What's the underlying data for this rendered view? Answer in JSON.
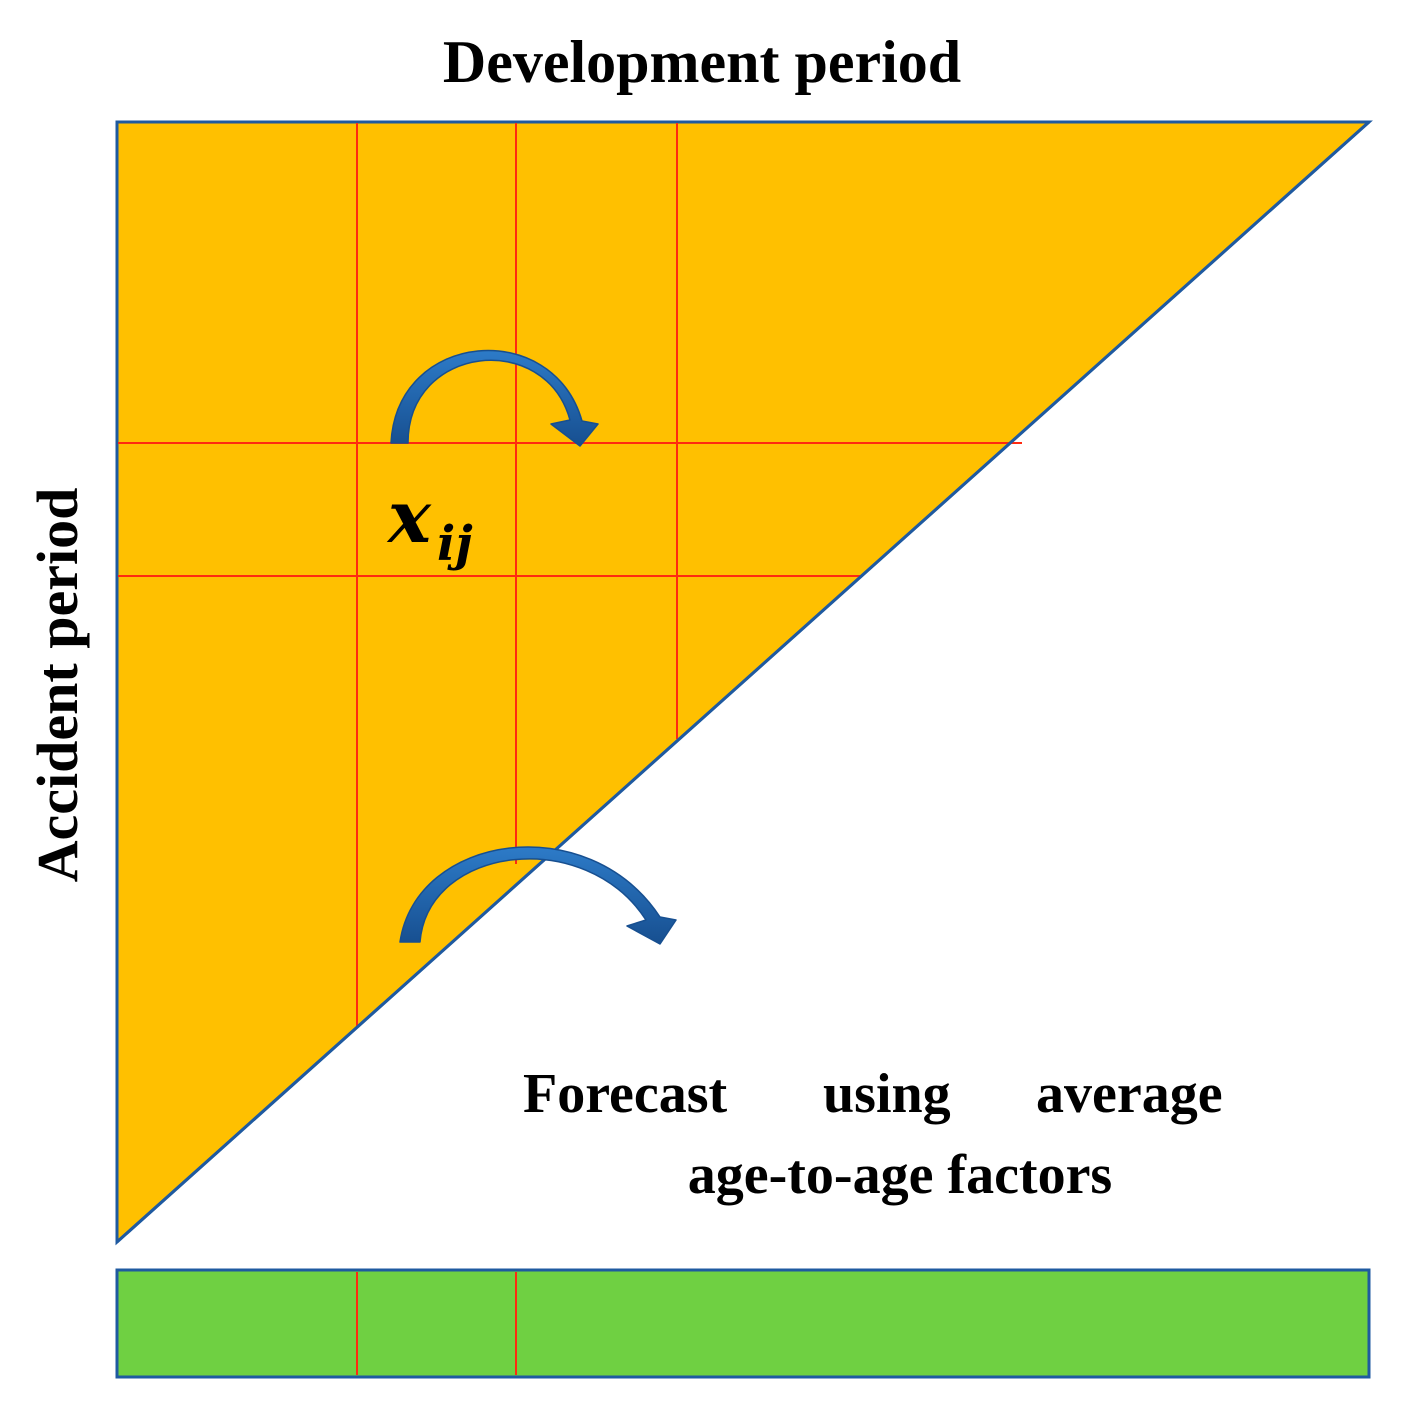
{
  "title": "Development period",
  "y_axis_label": "Accident period",
  "cell_symbol": "x",
  "cell_subscript": "ij",
  "forecast_note": {
    "line1_words": [
      "Forecast",
      "using",
      "average"
    ],
    "line2": "age-to-age factors"
  },
  "colors": {
    "triangle_fill": "#FFC000",
    "triangle_border": "#1F5AA0",
    "grid_line": "#FF2A10",
    "arrow_fill": "#2166B0",
    "factor_bar_fill": "#6FD042",
    "factor_bar_border": "#1F5AA0",
    "text": "#000000"
  }
}
